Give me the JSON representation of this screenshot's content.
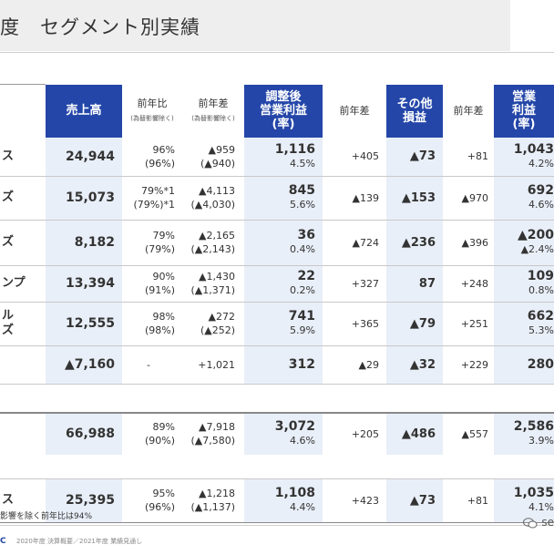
{
  "page": {
    "title": "度　セグメント別実績"
  },
  "headers": {
    "sales": "売上高",
    "yoy": "前年比",
    "yoy_sub": "(為替影響除く)",
    "diff": "前年差",
    "diff_sub": "(為替影響除く)",
    "adj_op": "調整後\n営業利益\n(率)",
    "adj_diff": "前年差",
    "other": "その他\n損益",
    "other_diff": "前年差",
    "op": "営業\n利益\n(率)"
  },
  "rows": [
    {
      "label": "ス",
      "sales": "24,944",
      "yoy": "96%",
      "yoy_ex": "(96%)",
      "diff": "▲959",
      "diff_ex": "(▲940)",
      "adj": "1,116",
      "adj_rate": "4.5%",
      "adj_diff": "+405",
      "other": "▲73",
      "other_diff": "+81",
      "op": "1,043",
      "op_rate": "4.2%"
    },
    {
      "label": "ズ",
      "sales": "15,073",
      "yoy": "79%*1",
      "yoy_ex": "(79%)*1",
      "diff": "▲4,113",
      "diff_ex": "(▲4,030)",
      "adj": "845",
      "adj_rate": "5.6%",
      "adj_diff": "▲139",
      "other": "▲153",
      "other_diff": "▲970",
      "op": "692",
      "op_rate": "4.6%"
    },
    {
      "label": "ズ",
      "sales": "8,182",
      "yoy": "79%",
      "yoy_ex": "(79%)",
      "diff": "▲2,165",
      "diff_ex": "(▲2,143)",
      "adj": "36",
      "adj_rate": "0.4%",
      "adj_diff": "▲724",
      "other": "▲236",
      "other_diff": "▲396",
      "op": "▲200",
      "op_rate": "▲2.4%"
    },
    {
      "label": "ンプ",
      "sales": "13,394",
      "yoy": "90%",
      "yoy_ex": "(91%)",
      "diff": "▲1,430",
      "diff_ex": "(▲1,371)",
      "adj": "22",
      "adj_rate": "0.2%",
      "adj_diff": "+327",
      "other": "87",
      "other_diff": "+248",
      "op": "109",
      "op_rate": "0.8%"
    },
    {
      "label": "ル\nズ",
      "sales": "12,555",
      "yoy": "98%",
      "yoy_ex": "(98%)",
      "diff": "▲272",
      "diff_ex": "(▲252)",
      "adj": "741",
      "adj_rate": "5.9%",
      "adj_diff": "+365",
      "other": "▲79",
      "other_diff": "+251",
      "op": "662",
      "op_rate": "5.3%"
    },
    {
      "label": "",
      "sales": "▲7,160",
      "yoy": "-",
      "yoy_ex": "",
      "diff": "+1,021",
      "diff_ex": "",
      "adj": "312",
      "adj_rate": "",
      "adj_diff": "▲29",
      "other": "▲32",
      "other_diff": "+229",
      "op": "280",
      "op_rate": ""
    },
    {
      "label": "",
      "sales": "66,988",
      "yoy": "89%",
      "yoy_ex": "(90%)",
      "diff": "▲7,918",
      "diff_ex": "(▲7,580)",
      "adj": "3,072",
      "adj_rate": "4.6%",
      "adj_diff": "+205",
      "other": "▲486",
      "other_diff": "▲557",
      "op": "2,586",
      "op_rate": "3.9%"
    },
    {
      "label": "ス",
      "sales": "25,395",
      "yoy": "95%",
      "yoy_ex": "(96%)",
      "diff": "▲1,218",
      "diff_ex": "(▲1,137)",
      "adj": "1,108",
      "adj_rate": "4.4%",
      "adj_diff": "+423",
      "other": "▲73",
      "other_diff": "+81",
      "op": "1,035",
      "op_rate": "4.1%"
    }
  ],
  "footnote": "影響を除く前年比は94%",
  "footer": {
    "logo": "C",
    "text": "2020年度 決算概要／2021年度 業績見通し",
    "watermark": "se"
  },
  "colors": {
    "header_dark": "#2446a8",
    "highlight": "#e9eff8"
  }
}
